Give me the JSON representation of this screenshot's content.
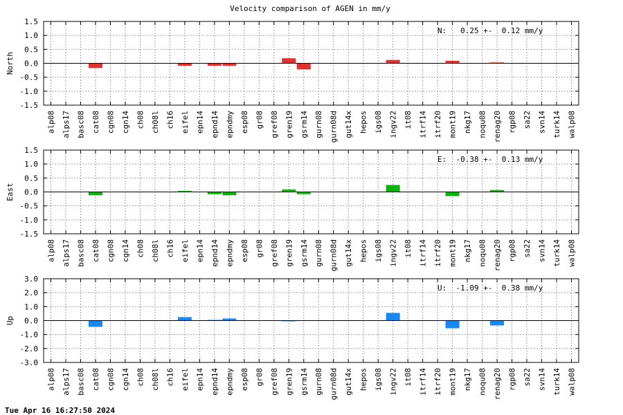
{
  "title": "Velocity comparison of AGEN in mm/y",
  "timestamp": "Tue Apr 16 16:27:50 2024",
  "chart_data": [
    {
      "type": "bar",
      "ylabel": "North",
      "color": "#e03030",
      "ylim": [
        -1.5,
        1.5
      ],
      "yticks": [
        -1.5,
        -1.0,
        -0.5,
        0.0,
        0.5,
        1.0,
        1.5
      ],
      "ytick_labels": [
        "-1.5",
        "-1.0",
        "-0.5",
        "0.0",
        "0.5",
        "1.0",
        "1.5"
      ],
      "annotation": "N:   0.25 +-  0.12 mm/y",
      "grid": true,
      "categories": [
        "alp08",
        "alps17",
        "basc08",
        "cat08",
        "cgn08",
        "cgn14",
        "ch08",
        "ch08l",
        "ch16",
        "eifel",
        "epn14",
        "epnd14",
        "epndmy",
        "esp08",
        "gr08",
        "gref08",
        "gren19",
        "gsrm14",
        "gurn08",
        "gurn08d",
        "gut14x",
        "hepos",
        "igs08",
        "ingv22",
        "it08",
        "itrf14",
        "itrf20",
        "mont19",
        "nkg17",
        "noqu08",
        "renag20",
        "rgp08",
        "sa22",
        "svn14",
        "turk14",
        "walp08"
      ],
      "values": [
        0,
        0,
        0,
        -0.17,
        0,
        0,
        0,
        0,
        0,
        -0.09,
        0,
        -0.09,
        -0.09,
        0,
        0,
        0,
        0.18,
        -0.22,
        0,
        0,
        0,
        0,
        0,
        0.12,
        0,
        0,
        0,
        0.09,
        0,
        0,
        0.03,
        0,
        0,
        0,
        0,
        0
      ]
    },
    {
      "type": "bar",
      "ylabel": "East",
      "color": "#10b010",
      "ylim": [
        -1.5,
        1.5
      ],
      "yticks": [
        -1.5,
        -1.0,
        -0.5,
        0.0,
        0.5,
        1.0,
        1.5
      ],
      "ytick_labels": [
        "-1.5",
        "-1.0",
        "-0.5",
        "0.0",
        "0.5",
        "1.0",
        "1.5"
      ],
      "annotation": "E:  -0.38 +-  0.13 mm/y",
      "grid": true,
      "categories": [
        "alp08",
        "alps17",
        "basc08",
        "cat08",
        "cgn08",
        "cgn14",
        "ch08",
        "ch08l",
        "ch16",
        "eifel",
        "epn14",
        "epnd14",
        "epndmy",
        "esp08",
        "gr08",
        "gref08",
        "gren19",
        "gsrm14",
        "gurn08",
        "gurn08d",
        "gut14x",
        "hepos",
        "igs08",
        "ingv22",
        "it08",
        "itrf14",
        "itrf20",
        "mont19",
        "nkg17",
        "noqu08",
        "renag20",
        "rgp08",
        "sa22",
        "svn14",
        "turk14",
        "walp08"
      ],
      "values": [
        0,
        0,
        0,
        -0.12,
        0,
        0,
        0,
        0,
        0,
        0.04,
        0,
        -0.08,
        -0.12,
        0,
        0,
        0,
        0.09,
        -0.08,
        0,
        0,
        0,
        0,
        0,
        0.25,
        0,
        0,
        0,
        -0.15,
        0,
        0,
        0.07,
        0,
        0,
        0,
        0,
        0
      ]
    },
    {
      "type": "bar",
      "ylabel": "Up",
      "color": "#1a88f0",
      "ylim": [
        -3.0,
        3.0
      ],
      "yticks": [
        -3.0,
        -2.0,
        -1.0,
        0.0,
        1.0,
        2.0,
        3.0
      ],
      "ytick_labels": [
        "-3.0",
        "-2.0",
        "-1.0",
        "0.0",
        "1.0",
        "2.0",
        "3.0"
      ],
      "annotation": "U:  -1.09 +-  0.38 mm/y",
      "grid": true,
      "categories": [
        "alp08",
        "alps17",
        "basc08",
        "cat08",
        "cgn08",
        "cgn14",
        "ch08",
        "ch08l",
        "ch16",
        "eifel",
        "epn14",
        "epnd14",
        "epndmy",
        "esp08",
        "gr08",
        "gref08",
        "gren19",
        "gsrm14",
        "gurn08",
        "gurn08d",
        "gut14x",
        "hepos",
        "igs08",
        "ingv22",
        "it08",
        "itrf14",
        "itrf20",
        "mont19",
        "nkg17",
        "noqu08",
        "renag20",
        "rgp08",
        "sa22",
        "svn14",
        "turk14",
        "walp08"
      ],
      "values": [
        0,
        0,
        0,
        -0.45,
        0,
        0,
        0,
        0,
        0,
        0.25,
        0,
        0.05,
        0.15,
        0,
        0,
        0,
        -0.05,
        0,
        0,
        0,
        0,
        0,
        0,
        0.55,
        0,
        0,
        0,
        -0.55,
        0,
        0,
        -0.35,
        0,
        0,
        0,
        0,
        0
      ]
    }
  ]
}
